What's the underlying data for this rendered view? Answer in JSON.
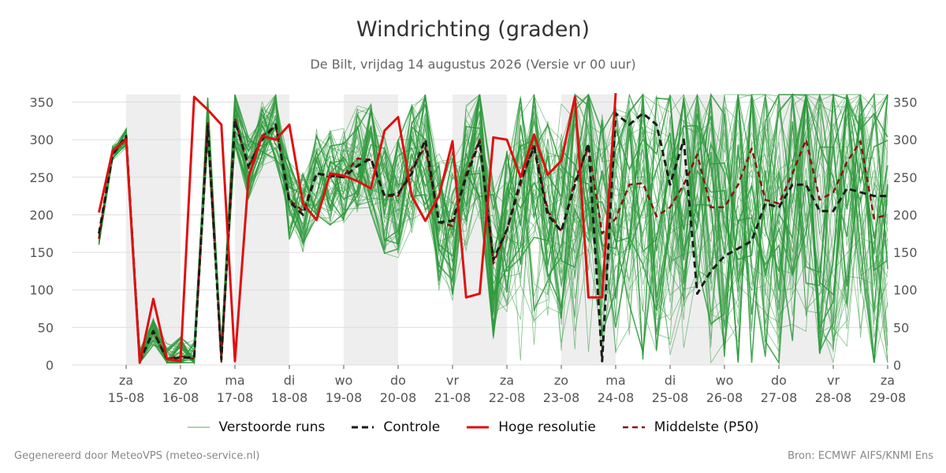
{
  "title": "Windrichting (graden)",
  "subtitle": "De Bilt, vrijdag 14 augustus 2026 (Versie vr 00 uur)",
  "footer_left": "Gegenereerd door MeteoVPS (meteo-service.nl)",
  "footer_right": "Bron: ECMWF AIFS/KNMI Ens",
  "colors": {
    "ensemble": "#2e9a3c",
    "control": "#1a1a1a",
    "high_res": "#e00f0f",
    "median": "#8b1010",
    "weekend_band": "#eeeeee",
    "grid": "#dddddd"
  },
  "chart_data": {
    "type": "line",
    "title": "Windrichting (graden)",
    "x_unit": "days since fri 14-08-2026 00:00",
    "ylim": [
      0,
      360
    ],
    "yticks": [
      0,
      50,
      100,
      150,
      200,
      250,
      300,
      350
    ],
    "grid": true,
    "legend_position": "bottom",
    "x_ticks": [
      {
        "x": 1,
        "day": "za",
        "date": "15-08"
      },
      {
        "x": 2,
        "day": "zo",
        "date": "16-08"
      },
      {
        "x": 3,
        "day": "ma",
        "date": "17-08"
      },
      {
        "x": 4,
        "day": "di",
        "date": "18-08"
      },
      {
        "x": 5,
        "day": "wo",
        "date": "19-08"
      },
      {
        "x": 6,
        "day": "do",
        "date": "20-08"
      },
      {
        "x": 7,
        "day": "vr",
        "date": "21-08"
      },
      {
        "x": 8,
        "day": "za",
        "date": "22-08"
      },
      {
        "x": 9,
        "day": "zo",
        "date": "23-08"
      },
      {
        "x": 10,
        "day": "ma",
        "date": "24-08"
      },
      {
        "x": 11,
        "day": "di",
        "date": "25-08"
      },
      {
        "x": 12,
        "day": "wo",
        "date": "26-08"
      },
      {
        "x": 13,
        "day": "do",
        "date": "27-08"
      },
      {
        "x": 14,
        "day": "vr",
        "date": "28-08"
      },
      {
        "x": 15,
        "day": "za",
        "date": "29-08"
      }
    ],
    "shaded_bands": [
      [
        1,
        2
      ],
      [
        3,
        4
      ],
      [
        5,
        6
      ],
      [
        7,
        8
      ],
      [
        9,
        10
      ],
      [
        11,
        12
      ],
      [
        13,
        14
      ]
    ],
    "legend": [
      {
        "key": "ensemble",
        "label": "Verstoorde runs"
      },
      {
        "key": "control",
        "label": "Controle"
      },
      {
        "key": "high_res",
        "label": "Hoge resolutie"
      },
      {
        "key": "median",
        "label": "Middelste (P50)"
      }
    ],
    "series": [
      {
        "name": "Controle",
        "key": "control",
        "x": [
          0.5,
          0.75,
          1.0,
          1.25,
          1.5,
          1.75,
          2.0,
          2.25,
          2.5,
          2.75,
          3.0,
          3.25,
          3.5,
          3.75,
          4.0,
          4.25,
          4.5,
          4.75,
          5.0,
          5.25,
          5.5,
          5.75,
          6.0,
          6.25,
          6.5,
          6.75,
          7.0,
          7.25,
          7.5,
          7.75,
          8.0,
          8.25,
          8.5,
          8.75,
          9.0,
          9.25,
          9.5,
          9.75,
          10.0,
          10.25,
          10.5,
          10.75,
          11.0,
          11.25,
          11.5,
          11.75,
          12.0,
          12.25,
          12.5,
          12.75,
          13.0,
          13.25,
          13.5,
          13.75,
          14.0,
          14.25,
          14.5,
          14.75,
          15.0
        ],
        "values": [
          175,
          280,
          305,
          5,
          45,
          8,
          10,
          10,
          318,
          8,
          325,
          265,
          300,
          320,
          218,
          200,
          255,
          252,
          250,
          265,
          275,
          225,
          228,
          255,
          300,
          190,
          192,
          250,
          298,
          140,
          180,
          245,
          290,
          200,
          178,
          240,
          295,
          5,
          335,
          320,
          335,
          320,
          240,
          300,
          95,
          125,
          145,
          155,
          165,
          215,
          210,
          240,
          240,
          205,
          205,
          235,
          230,
          225,
          225
        ]
      },
      {
        "name": "Hoge resolutie",
        "key": "high_res",
        "x": [
          0.5,
          0.75,
          1.0,
          1.25,
          1.5,
          1.75,
          2.0,
          2.25,
          2.5,
          2.75,
          3.0,
          3.25,
          3.5,
          3.75,
          4.0,
          4.25,
          4.5,
          4.75,
          5.0,
          5.25,
          5.5,
          5.75,
          6.0,
          6.25,
          6.5,
          6.75,
          7.0,
          7.25,
          7.5,
          7.75,
          8.0,
          8.25,
          8.5,
          8.75,
          9.0,
          9.25,
          9.5,
          9.75,
          10.0
        ],
        "values": [
          203,
          285,
          300,
          3,
          88,
          8,
          5,
          357,
          340,
          320,
          5,
          250,
          305,
          300,
          320,
          215,
          193,
          255,
          252,
          245,
          235,
          312,
          330,
          225,
          192,
          225,
          298,
          90,
          95,
          303,
          300,
          250,
          307,
          253,
          272,
          357,
          90,
          90,
          362
        ]
      },
      {
        "name": "Middelste (P50)",
        "key": "median",
        "x": [
          0.5,
          0.75,
          1.0,
          1.25,
          1.5,
          1.75,
          2.0,
          2.25,
          2.5,
          2.75,
          3.0,
          3.25,
          3.5,
          3.75,
          4.0,
          4.25,
          4.5,
          4.75,
          5.0,
          5.25,
          5.5,
          5.75,
          6.0,
          6.25,
          6.5,
          6.75,
          7.0,
          7.25,
          7.5,
          7.75,
          8.0,
          8.25,
          8.5,
          8.75,
          9.0,
          9.25,
          9.5,
          9.75,
          10.0,
          10.25,
          10.5,
          10.75,
          11.0,
          11.25,
          11.5,
          11.75,
          12.0,
          12.25,
          12.5,
          12.75,
          13.0,
          13.25,
          13.5,
          13.75,
          14.0,
          14.25,
          14.5,
          14.75,
          15.0
        ],
        "values": [
          168,
          282,
          302,
          5,
          45,
          8,
          12,
          8,
          325,
          5,
          328,
          262,
          305,
          318,
          220,
          205,
          255,
          250,
          252,
          275,
          273,
          225,
          225,
          262,
          290,
          190,
          185,
          255,
          300,
          135,
          180,
          240,
          295,
          205,
          178,
          245,
          290,
          175,
          195,
          240,
          242,
          198,
          210,
          240,
          280,
          210,
          210,
          240,
          288,
          220,
          215,
          255,
          300,
          220,
          230,
          270,
          298,
          195,
          200
        ]
      }
    ]
  }
}
